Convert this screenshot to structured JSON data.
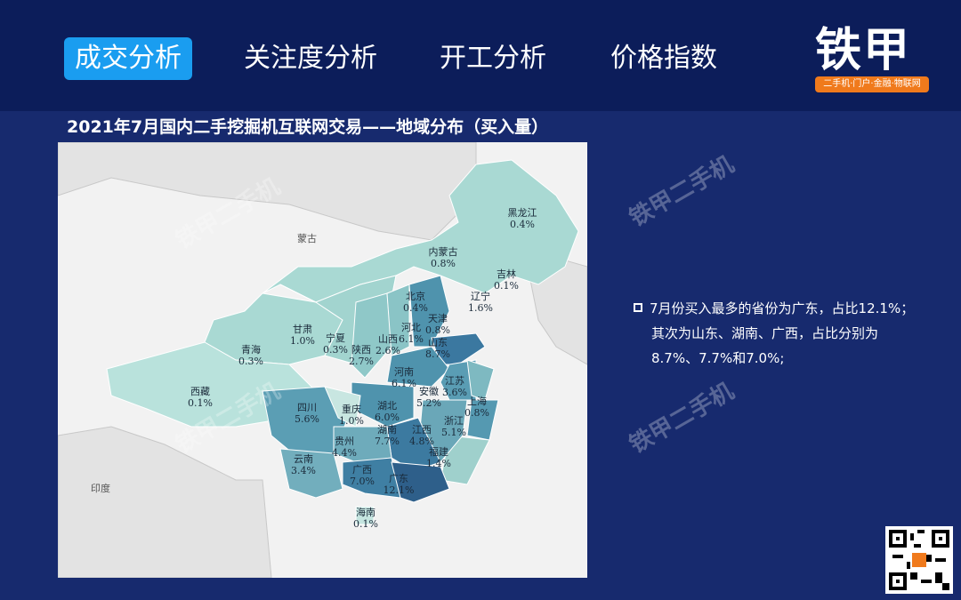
{
  "tabs": [
    {
      "label": "成交分析",
      "active": true
    },
    {
      "label": "关注度分析"
    },
    {
      "label": "开工分析"
    },
    {
      "label": "价格指数"
    }
  ],
  "logo": {
    "name": "铁甲",
    "tagline": "二手机·门户·金融·物联网"
  },
  "title": "2021年7月国内二手挖掘机互联网交易——地域分布（买入量）",
  "watermark": "铁甲二手机",
  "countries": {
    "mongolia": "蒙古",
    "india": "印度"
  },
  "provinces": [
    {
      "name": "黑龙江",
      "value": "0.4%"
    },
    {
      "name": "内蒙古",
      "value": "0.8%"
    },
    {
      "name": "吉林",
      "value": "0.1%"
    },
    {
      "name": "辽宁",
      "value": "1.6%"
    },
    {
      "name": "北京",
      "value": "0.4%"
    },
    {
      "name": "天津",
      "value": "0.8%"
    },
    {
      "name": "河北",
      "value": "6.1%"
    },
    {
      "name": "山西",
      "value": "2.6%"
    },
    {
      "name": "山东",
      "value": "8.7%"
    },
    {
      "name": "甘肃",
      "value": "1.0%"
    },
    {
      "name": "宁夏",
      "value": "0.3%"
    },
    {
      "name": "陕西",
      "value": "2.7%"
    },
    {
      "name": "青海",
      "value": "0.3%"
    },
    {
      "name": "西藏",
      "value": "0.1%"
    },
    {
      "name": "河南",
      "value": "6.1%"
    },
    {
      "name": "江苏",
      "value": "3.6%"
    },
    {
      "name": "安徽",
      "value": "5.2%"
    },
    {
      "name": "上海",
      "value": "0.8%"
    },
    {
      "name": "四川",
      "value": "5.6%"
    },
    {
      "name": "重庆",
      "value": "1.0%"
    },
    {
      "name": "湖北",
      "value": "6.0%"
    },
    {
      "name": "浙江",
      "value": "5.1%"
    },
    {
      "name": "湖南",
      "value": "7.7%"
    },
    {
      "name": "江西",
      "value": "4.8%"
    },
    {
      "name": "贵州",
      "value": "4.4%"
    },
    {
      "name": "福建",
      "value": "1.4%"
    },
    {
      "name": "云南",
      "value": "3.4%"
    },
    {
      "name": "广西",
      "value": "7.0%"
    },
    {
      "name": "广东",
      "value": "12.1%"
    },
    {
      "name": "海南",
      "value": "0.1%"
    }
  ],
  "note": {
    "line1": "7月份买入最多的省份为广东，占比12.1%；",
    "line2": "其次为山东、湖南、广西，占比分别为",
    "line3": "8.7%、7.7%和7.0%;"
  },
  "colors": {
    "background": "#172a6e",
    "header": "#0c1d5a",
    "active_tab": "#1a9df0",
    "logo_orange": "#f07a1c",
    "map_light": "#a9d9d3",
    "map_dark": "#2e5f8a"
  }
}
